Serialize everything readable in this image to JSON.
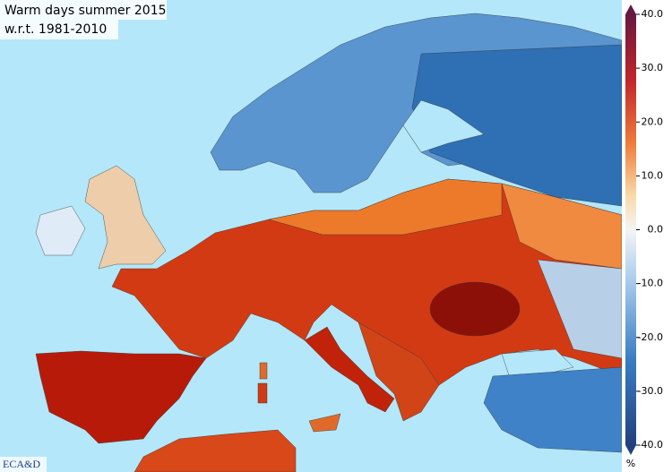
{
  "header": {
    "title": "Warm days summer 2015",
    "subtitle": "w.r.t. 1981-2010"
  },
  "logo": "ECA&D",
  "colorbar": {
    "range": [
      -40,
      40
    ],
    "unit": "%",
    "ticks": [
      {
        "value": 40,
        "label": "40.0"
      },
      {
        "value": 30,
        "label": "30.0"
      },
      {
        "value": 20,
        "label": "20.0"
      },
      {
        "value": 10,
        "label": "10.0"
      },
      {
        "value": 0,
        "label": "0.0"
      },
      {
        "value": -10,
        "label": "-10.0"
      },
      {
        "value": -20,
        "label": "-20.0"
      },
      {
        "value": -30,
        "label": "-30.0"
      },
      {
        "value": -40,
        "label": "-40.0"
      }
    ]
  }
}
